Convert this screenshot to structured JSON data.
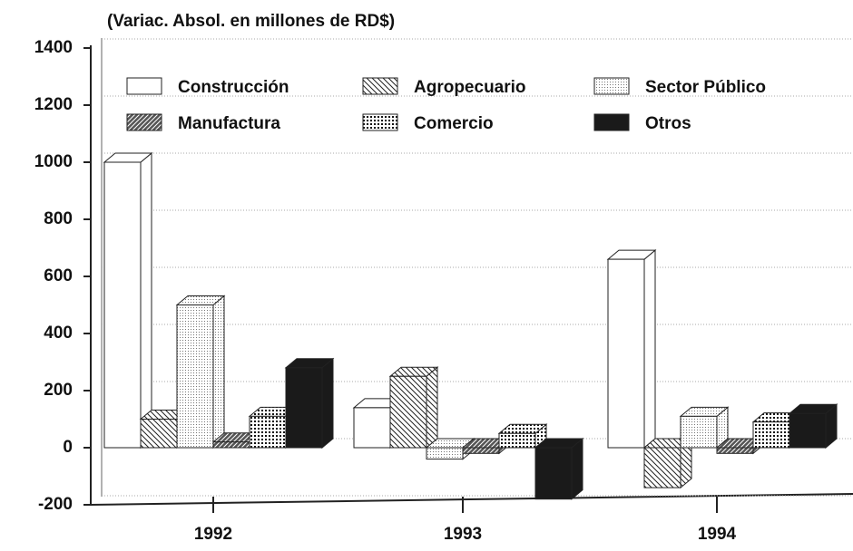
{
  "chart_data": {
    "type": "bar3d",
    "title": "(Variac. Absol. en millones de RD$)",
    "categories": [
      "1992",
      "1993",
      "1994"
    ],
    "series": [
      {
        "name": "Construcción",
        "color": "#ffffff",
        "values": [
          1000,
          140,
          660
        ]
      },
      {
        "name": "Agropecuario",
        "color": "#ffffff",
        "values": [
          100,
          250,
          -140
        ]
      },
      {
        "name": "Sector Público",
        "color": "#eeeeee",
        "values": [
          500,
          -40,
          110
        ]
      },
      {
        "name": "Manufactura",
        "color": "#ffffff",
        "values": [
          20,
          -20,
          -20
        ]
      },
      {
        "name": "Comercio",
        "color": "#ffffff",
        "values": [
          110,
          50,
          90
        ]
      },
      {
        "name": "Otros",
        "color": "#1a1a1a",
        "values": [
          280,
          -180,
          120
        ]
      }
    ],
    "ylim": [
      -200,
      1400
    ],
    "yticks": [
      -200,
      0,
      200,
      400,
      600,
      800,
      1000,
      1200,
      1400
    ],
    "grid": true
  }
}
